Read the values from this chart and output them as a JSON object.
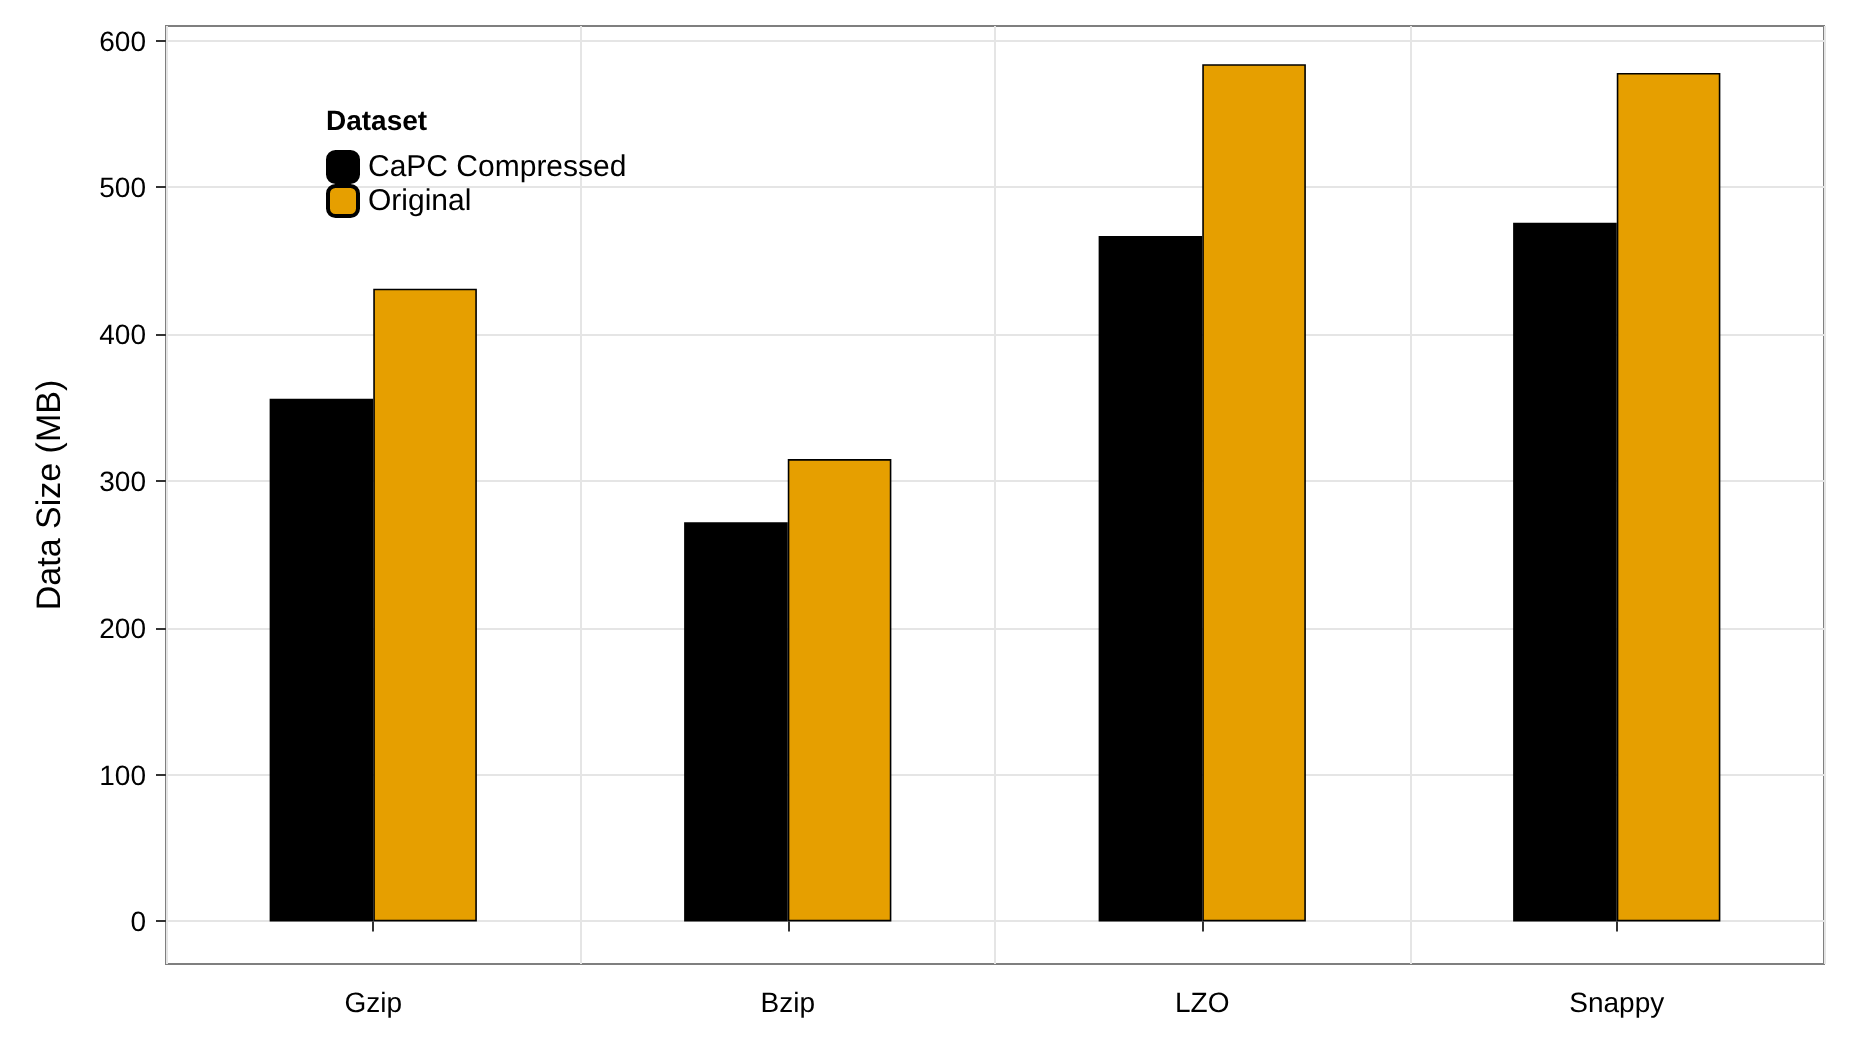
{
  "chart_data": {
    "type": "bar",
    "ylabel": "Data Size (MB)",
    "legend_title": "Dataset",
    "categories": [
      "Gzip",
      "Bzip",
      "LZO",
      "Snappy"
    ],
    "series": [
      {
        "name": "CaPC Compressed",
        "color": "#000000",
        "values": [
          356,
          272,
          467,
          476
        ]
      },
      {
        "name": "Original",
        "color": "#e69f00",
        "values": [
          431,
          315,
          584,
          578
        ]
      }
    ],
    "ylim": [
      -29,
      610
    ],
    "yticks": [
      0,
      100,
      200,
      300,
      400,
      500,
      600
    ],
    "grid": true,
    "legend": "top left"
  }
}
